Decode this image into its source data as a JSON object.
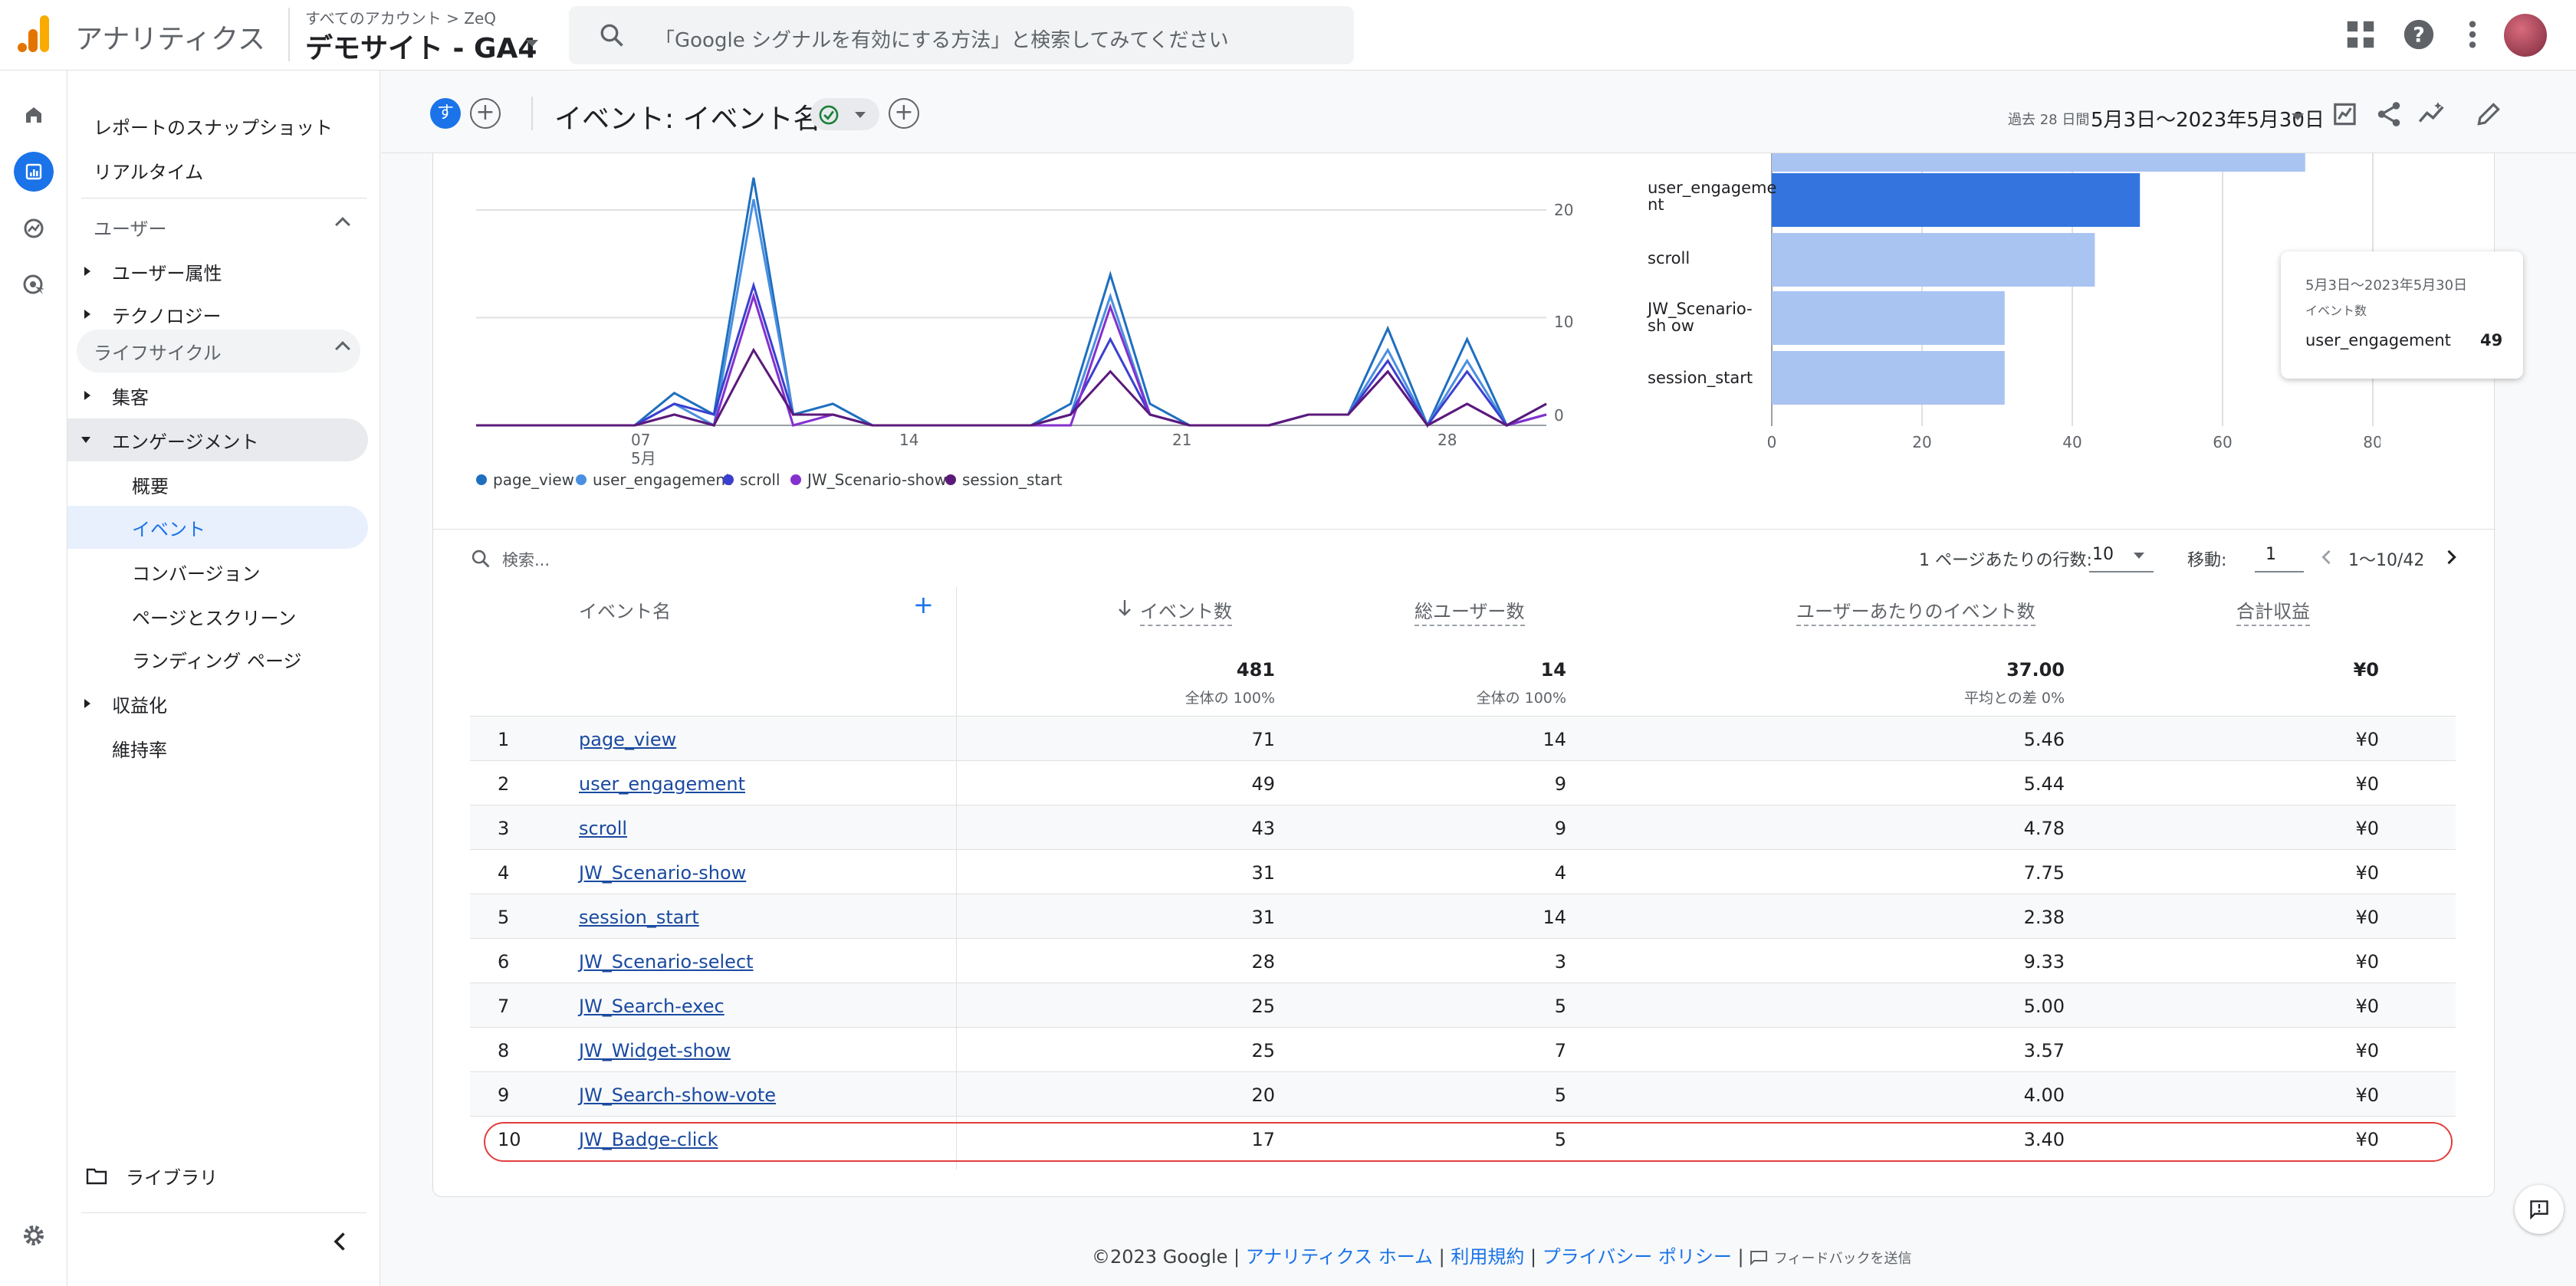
{
  "topbar": {
    "app_name": "アナリティクス",
    "account_crumb": "すべてのアカウント > ZeQ",
    "property_name": "デモサイト - GA4",
    "search_placeholder": "「Google シグナルを有効にする方法」と検索してみてください"
  },
  "nav": {
    "snapshot": "レポートのスナップショット",
    "realtime": "リアルタイム",
    "user_section": "ユーザー",
    "user_attributes": "ユーザー属性",
    "technology": "テクノロジー",
    "lifecycle_section": "ライフサイクル",
    "acquisition": "集客",
    "engagement": "エンゲージメント",
    "overview": "概要",
    "events": "イベント",
    "conversions": "コンバージョン",
    "pages_screens": "ページとスクリーン",
    "landing_page": "ランディング ページ",
    "monetization": "収益化",
    "retention": "維持率",
    "library": "ライブラリ"
  },
  "header": {
    "compare_chip": "す",
    "title": "イベント: イベント名",
    "date_sub": "過去 28 日間",
    "date_range": "5月3日～2023年5月30日"
  },
  "line_chart": {
    "x_ticks": [
      "07",
      "14",
      "21",
      "28"
    ],
    "x_month": "5月",
    "y_ticks": [
      "20",
      "10",
      "0"
    ],
    "legend": [
      {
        "name": "page_view",
        "color": "#1f6fbf"
      },
      {
        "name": "user_engagement",
        "color": "#4a8fe0"
      },
      {
        "name": "scroll",
        "color": "#3b3fcf"
      },
      {
        "name": "JW_Scenario-show",
        "color": "#8430ce"
      },
      {
        "name": "session_start",
        "color": "#5b1a7a"
      }
    ]
  },
  "chart_data": [
    {
      "type": "line",
      "x": [
        3,
        4,
        5,
        6,
        7,
        8,
        9,
        10,
        11,
        12,
        13,
        14,
        15,
        16,
        17,
        18,
        19,
        20,
        21,
        22,
        23,
        24,
        25,
        26,
        27,
        28,
        29,
        30
      ],
      "series": [
        {
          "name": "page_view",
          "values": [
            0,
            0,
            0,
            0,
            0,
            3,
            1,
            23,
            1,
            2,
            0,
            0,
            0,
            0,
            0,
            2,
            14,
            2,
            0,
            0,
            0,
            1,
            1,
            9,
            0,
            8,
            0,
            2
          ]
        },
        {
          "name": "user_engagement",
          "values": [
            0,
            0,
            0,
            0,
            0,
            2,
            0,
            21,
            1,
            1,
            0,
            0,
            0,
            0,
            0,
            1,
            12,
            1,
            0,
            0,
            0,
            1,
            1,
            7,
            0,
            6,
            0,
            1
          ]
        },
        {
          "name": "scroll",
          "values": [
            0,
            0,
            0,
            0,
            0,
            2,
            1,
            13,
            1,
            1,
            0,
            0,
            0,
            0,
            0,
            1,
            8,
            1,
            0,
            0,
            0,
            1,
            1,
            6,
            0,
            5,
            0,
            1
          ]
        },
        {
          "name": "JW_Scenario-show",
          "values": [
            0,
            0,
            0,
            0,
            0,
            1,
            0,
            12,
            0,
            1,
            0,
            0,
            0,
            0,
            0,
            0,
            11,
            1,
            0,
            0,
            0,
            1,
            1,
            5,
            0,
            2,
            0,
            1
          ]
        },
        {
          "name": "session_start",
          "values": [
            0,
            0,
            0,
            0,
            0,
            1,
            0,
            7,
            1,
            1,
            0,
            0,
            0,
            0,
            0,
            1,
            5,
            1,
            0,
            0,
            0,
            1,
            1,
            5,
            0,
            2,
            0,
            2
          ]
        }
      ],
      "ylim": [
        0,
        25
      ]
    },
    {
      "type": "bar",
      "orientation": "horizontal",
      "categories": [
        "page_view",
        "user_engagement",
        "scroll",
        "JW_Scenario-show",
        "session_start"
      ],
      "values": [
        71,
        49,
        43,
        31,
        31
      ],
      "category_labels": [
        "",
        "user_engageme nt",
        "scroll",
        "JW_Scenario-sh ow",
        "session_start"
      ],
      "x_ticks": [
        "0",
        "20",
        "40",
        "60",
        "80"
      ],
      "xlim": [
        0,
        80
      ],
      "highlight": "user_engagement"
    }
  ],
  "tooltip": {
    "date": "5月3日～2023年5月30日",
    "metric": "イベント数",
    "name": "user_engagement",
    "value": "49"
  },
  "table": {
    "search_placeholder": "検索...",
    "rows_per_page_label": "1 ページあたりの行数:",
    "rows_per_page": "10",
    "goto_label": "移動:",
    "goto_value": "1",
    "page_info": "1～10/42",
    "columns": {
      "name": "イベント名",
      "event_count": "イベント数",
      "total_users": "総ユーザー数",
      "per_user": "ユーザーあたりのイベント数",
      "revenue": "合計収益"
    },
    "totals": {
      "event_count": "481",
      "event_count_sub": "全体の 100%",
      "total_users": "14",
      "total_users_sub": "全体の 100%",
      "per_user": "37.00",
      "per_user_sub": "平均との差 0%",
      "revenue": "¥0"
    },
    "rows": [
      {
        "idx": "1",
        "name": "page_view",
        "events": "71",
        "users": "14",
        "per_user": "5.46",
        "revenue": "¥0"
      },
      {
        "idx": "2",
        "name": "user_engagement",
        "events": "49",
        "users": "9",
        "per_user": "5.44",
        "revenue": "¥0"
      },
      {
        "idx": "3",
        "name": "scroll",
        "events": "43",
        "users": "9",
        "per_user": "4.78",
        "revenue": "¥0"
      },
      {
        "idx": "4",
        "name": "JW_Scenario-show",
        "events": "31",
        "users": "4",
        "per_user": "7.75",
        "revenue": "¥0"
      },
      {
        "idx": "5",
        "name": "session_start",
        "events": "31",
        "users": "14",
        "per_user": "2.38",
        "revenue": "¥0"
      },
      {
        "idx": "6",
        "name": "JW_Scenario-select",
        "events": "28",
        "users": "3",
        "per_user": "9.33",
        "revenue": "¥0"
      },
      {
        "idx": "7",
        "name": "JW_Search-exec",
        "events": "25",
        "users": "5",
        "per_user": "5.00",
        "revenue": "¥0"
      },
      {
        "idx": "8",
        "name": "JW_Widget-show",
        "events": "25",
        "users": "7",
        "per_user": "3.57",
        "revenue": "¥0"
      },
      {
        "idx": "9",
        "name": "JW_Search-show-vote",
        "events": "20",
        "users": "5",
        "per_user": "4.00",
        "revenue": "¥0"
      },
      {
        "idx": "10",
        "name": "JW_Badge-click",
        "events": "17",
        "users": "5",
        "per_user": "3.40",
        "revenue": "¥0"
      }
    ]
  },
  "footer": {
    "copyright": "©2023 Google |",
    "analytics_home": "アナリティクス ホーム",
    "terms": "利用規約",
    "privacy": "プライバシー ポリシー",
    "feedback": "フィードバックを送信"
  }
}
